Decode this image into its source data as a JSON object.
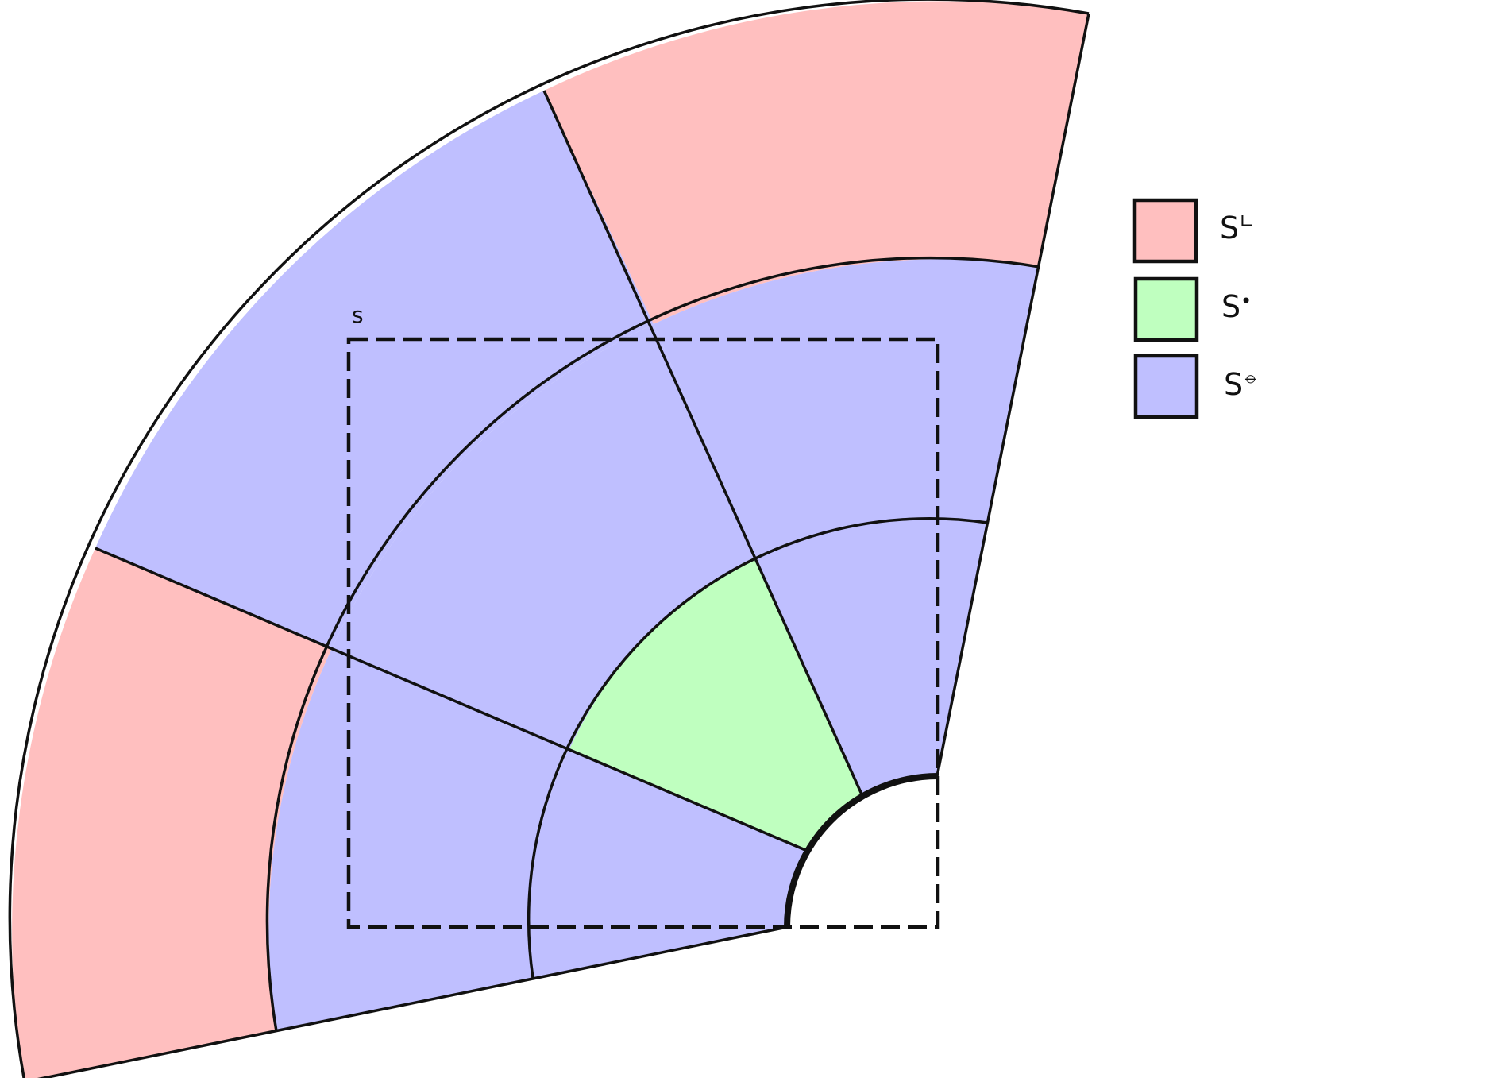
{
  "diagram": {
    "box_label": "s",
    "colors": {
      "outer": "#ffbfbf",
      "center": "#bfffbf",
      "surround": "#bfbfff",
      "stroke": "#111111"
    },
    "legend": [
      {
        "base": "S",
        "mark": "∟",
        "color": "#ffbfbf"
      },
      {
        "base": "S",
        "mark": "•",
        "color": "#bfffbf"
      },
      {
        "base": "S",
        "mark": "⦵",
        "color": "#bfbfff"
      }
    ]
  }
}
